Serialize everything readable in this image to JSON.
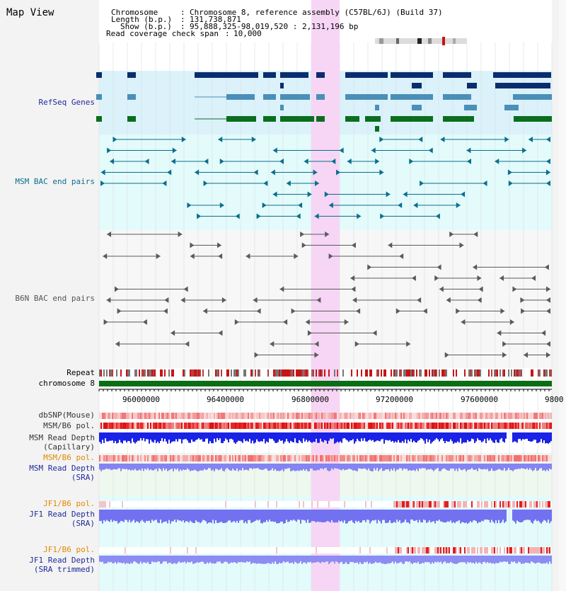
{
  "app": {
    "title": "Map View"
  },
  "header": {
    "chromosome_label": "Chromosome",
    "chromosome_value": "Chromosome 8, reference assembly (C57BL/6J) (Build 37)",
    "length_label": "Length (b.p.)",
    "length_value": "131,738,871",
    "show_label": "Show (b.p.)",
    "show_value": "95,888,325-98,019,520 : 2,131,196 bp",
    "coverage_label": "Read coverage check span",
    "coverage_value": "10,000"
  },
  "tracks": {
    "refseq": "RefSeq Genes",
    "msm_bac": "MSM BAC end pairs",
    "b6n_bac": "B6N BAC end pairs",
    "repeat": "Repeat",
    "chromosome": "chromosome 8",
    "dbsnp": "dbSNP(Mouse)",
    "msm_pol": "MSM/B6 pol.",
    "msm_depth_cap_1": "MSM Read Depth",
    "msm_depth_cap_2": "(Capillary)",
    "msm_pol_sra": "MSM/B6 pol.",
    "msm_depth_sra_1": "MSM Read Depth",
    "msm_depth_sra_2": "(SRA)",
    "jf1_pol": "JF1/B6 pol.",
    "jf1_depth_1": "JF1 Read Depth",
    "jf1_depth_2": "(SRA)",
    "jf1_pol_trim": "JF1/B6 pol.",
    "jf1_trim_1": "JF1 Read Depth",
    "jf1_trim_2": "(SRA trimmed)"
  },
  "ruler": {
    "ticks": [
      "96000000",
      "96400000",
      "96800000",
      "97200000",
      "97600000",
      "9800"
    ]
  },
  "colors": {
    "navy": "#0a2d6e",
    "refseq_light": "#4a8fb8",
    "refseq_green": "#0a6e1e",
    "refseq_bg": "#dbf2fb",
    "msm_bg": "#e3fbfb",
    "highlight": "#f6d6f4",
    "depth_blue": "#1a22e6",
    "depth_light": "#8484f2",
    "orange": "#e08a00",
    "label_blue": "#1f2a9a"
  }
}
